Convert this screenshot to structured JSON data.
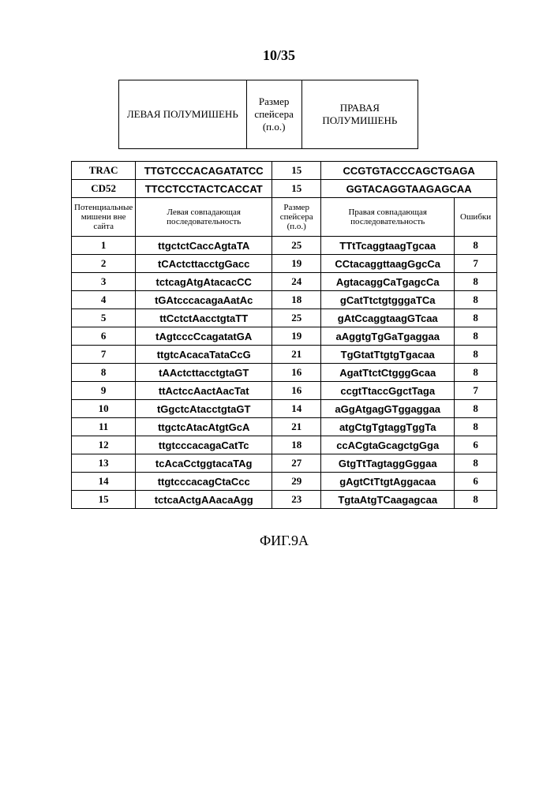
{
  "page_number": "10/35",
  "header_table": {
    "columns": [
      {
        "label": "ЛЕВАЯ ПОЛУМИШЕНЬ"
      },
      {
        "label": "Размер спейсера (п.о.)"
      },
      {
        "label": "ПРАВАЯ ПОЛУМИШЕНЬ"
      }
    ]
  },
  "reference_rows": [
    {
      "id": "TRAC",
      "left": "TTGTCCCACAGATATCC",
      "spacer": "15",
      "right": "CCGTGTACCCAGCTGAGA"
    },
    {
      "id": "CD52",
      "left": "TTCCTCCTACTCACCAT",
      "spacer": "15",
      "right": "GGTACAGGTAAGAGCAA"
    }
  ],
  "sub_header": {
    "c1": "Потенциальные мишени вне сайта",
    "c2": "Левая совпадающая последовательность",
    "c3": "Размер спейсера (п.о.)",
    "c4": "Правая совпадающая последовательность",
    "c5": "Ошибки"
  },
  "data_rows": [
    {
      "n": "1",
      "left": "ttgctctCaccAgtaTA",
      "spacer": "25",
      "right": "TTtTcaggtaagTgcaa",
      "err": "8"
    },
    {
      "n": "2",
      "left": "tCActcttacctgGacc",
      "spacer": "19",
      "right": "CCtacaggttaagGgcCa",
      "err": "7"
    },
    {
      "n": "3",
      "left": "tctcagAtgAtacacCC",
      "spacer": "24",
      "right": "AgtacaggCaTgagcCa",
      "err": "8"
    },
    {
      "n": "4",
      "left": "tGAtcccacagaAatAc",
      "spacer": "18",
      "right": "gCatTtctgtgggaTCa",
      "err": "8"
    },
    {
      "n": "5",
      "left": "ttCctctAacctgtaTT",
      "spacer": "25",
      "right": "gAtCcaggtaagGTcaa",
      "err": "8"
    },
    {
      "n": "6",
      "left": "tAgtcccCcagatatGA",
      "spacer": "19",
      "right": "aAggtgTgGaTgaggaa",
      "err": "8"
    },
    {
      "n": "7",
      "left": "ttgtcAcacaTataCcG",
      "spacer": "21",
      "right": "TgGtatTtgtgTgacaa",
      "err": "8"
    },
    {
      "n": "8",
      "left": "tAActcttacctgtaGT",
      "spacer": "16",
      "right": "AgatTtctCtgggGcaa",
      "err": "8"
    },
    {
      "n": "9",
      "left": "ttActccAactAacTat",
      "spacer": "16",
      "right": "ccgtTtaccGgctTaga",
      "err": "7"
    },
    {
      "n": "10",
      "left": "tGgctcAtacctgtaGT",
      "spacer": "14",
      "right": "aGgAtgagGTggaggaa",
      "err": "8"
    },
    {
      "n": "11",
      "left": "ttgctcAtacAtgtGcA",
      "spacer": "21",
      "right": "atgCtgTgtaggTggTa",
      "err": "8"
    },
    {
      "n": "12",
      "left": "ttgtcccacagaCatTc",
      "spacer": "18",
      "right": "ccACgtaGcagctgGga",
      "err": "6"
    },
    {
      "n": "13",
      "left": "tcAcaCctggtacaTAg",
      "spacer": "27",
      "right": "GtgTtTagtaggGggaa",
      "err": "8"
    },
    {
      "n": "14",
      "left": "ttgtcccacagCtaCcc",
      "spacer": "29",
      "right": "gAgtCtTtgtAggacaa",
      "err": "6"
    },
    {
      "n": "15",
      "left": "tctcaActgAAacaAgg",
      "spacer": "23",
      "right": "TgtaAtgTCaagagcaa",
      "err": "8"
    }
  ],
  "caption": "ФИГ.9A"
}
